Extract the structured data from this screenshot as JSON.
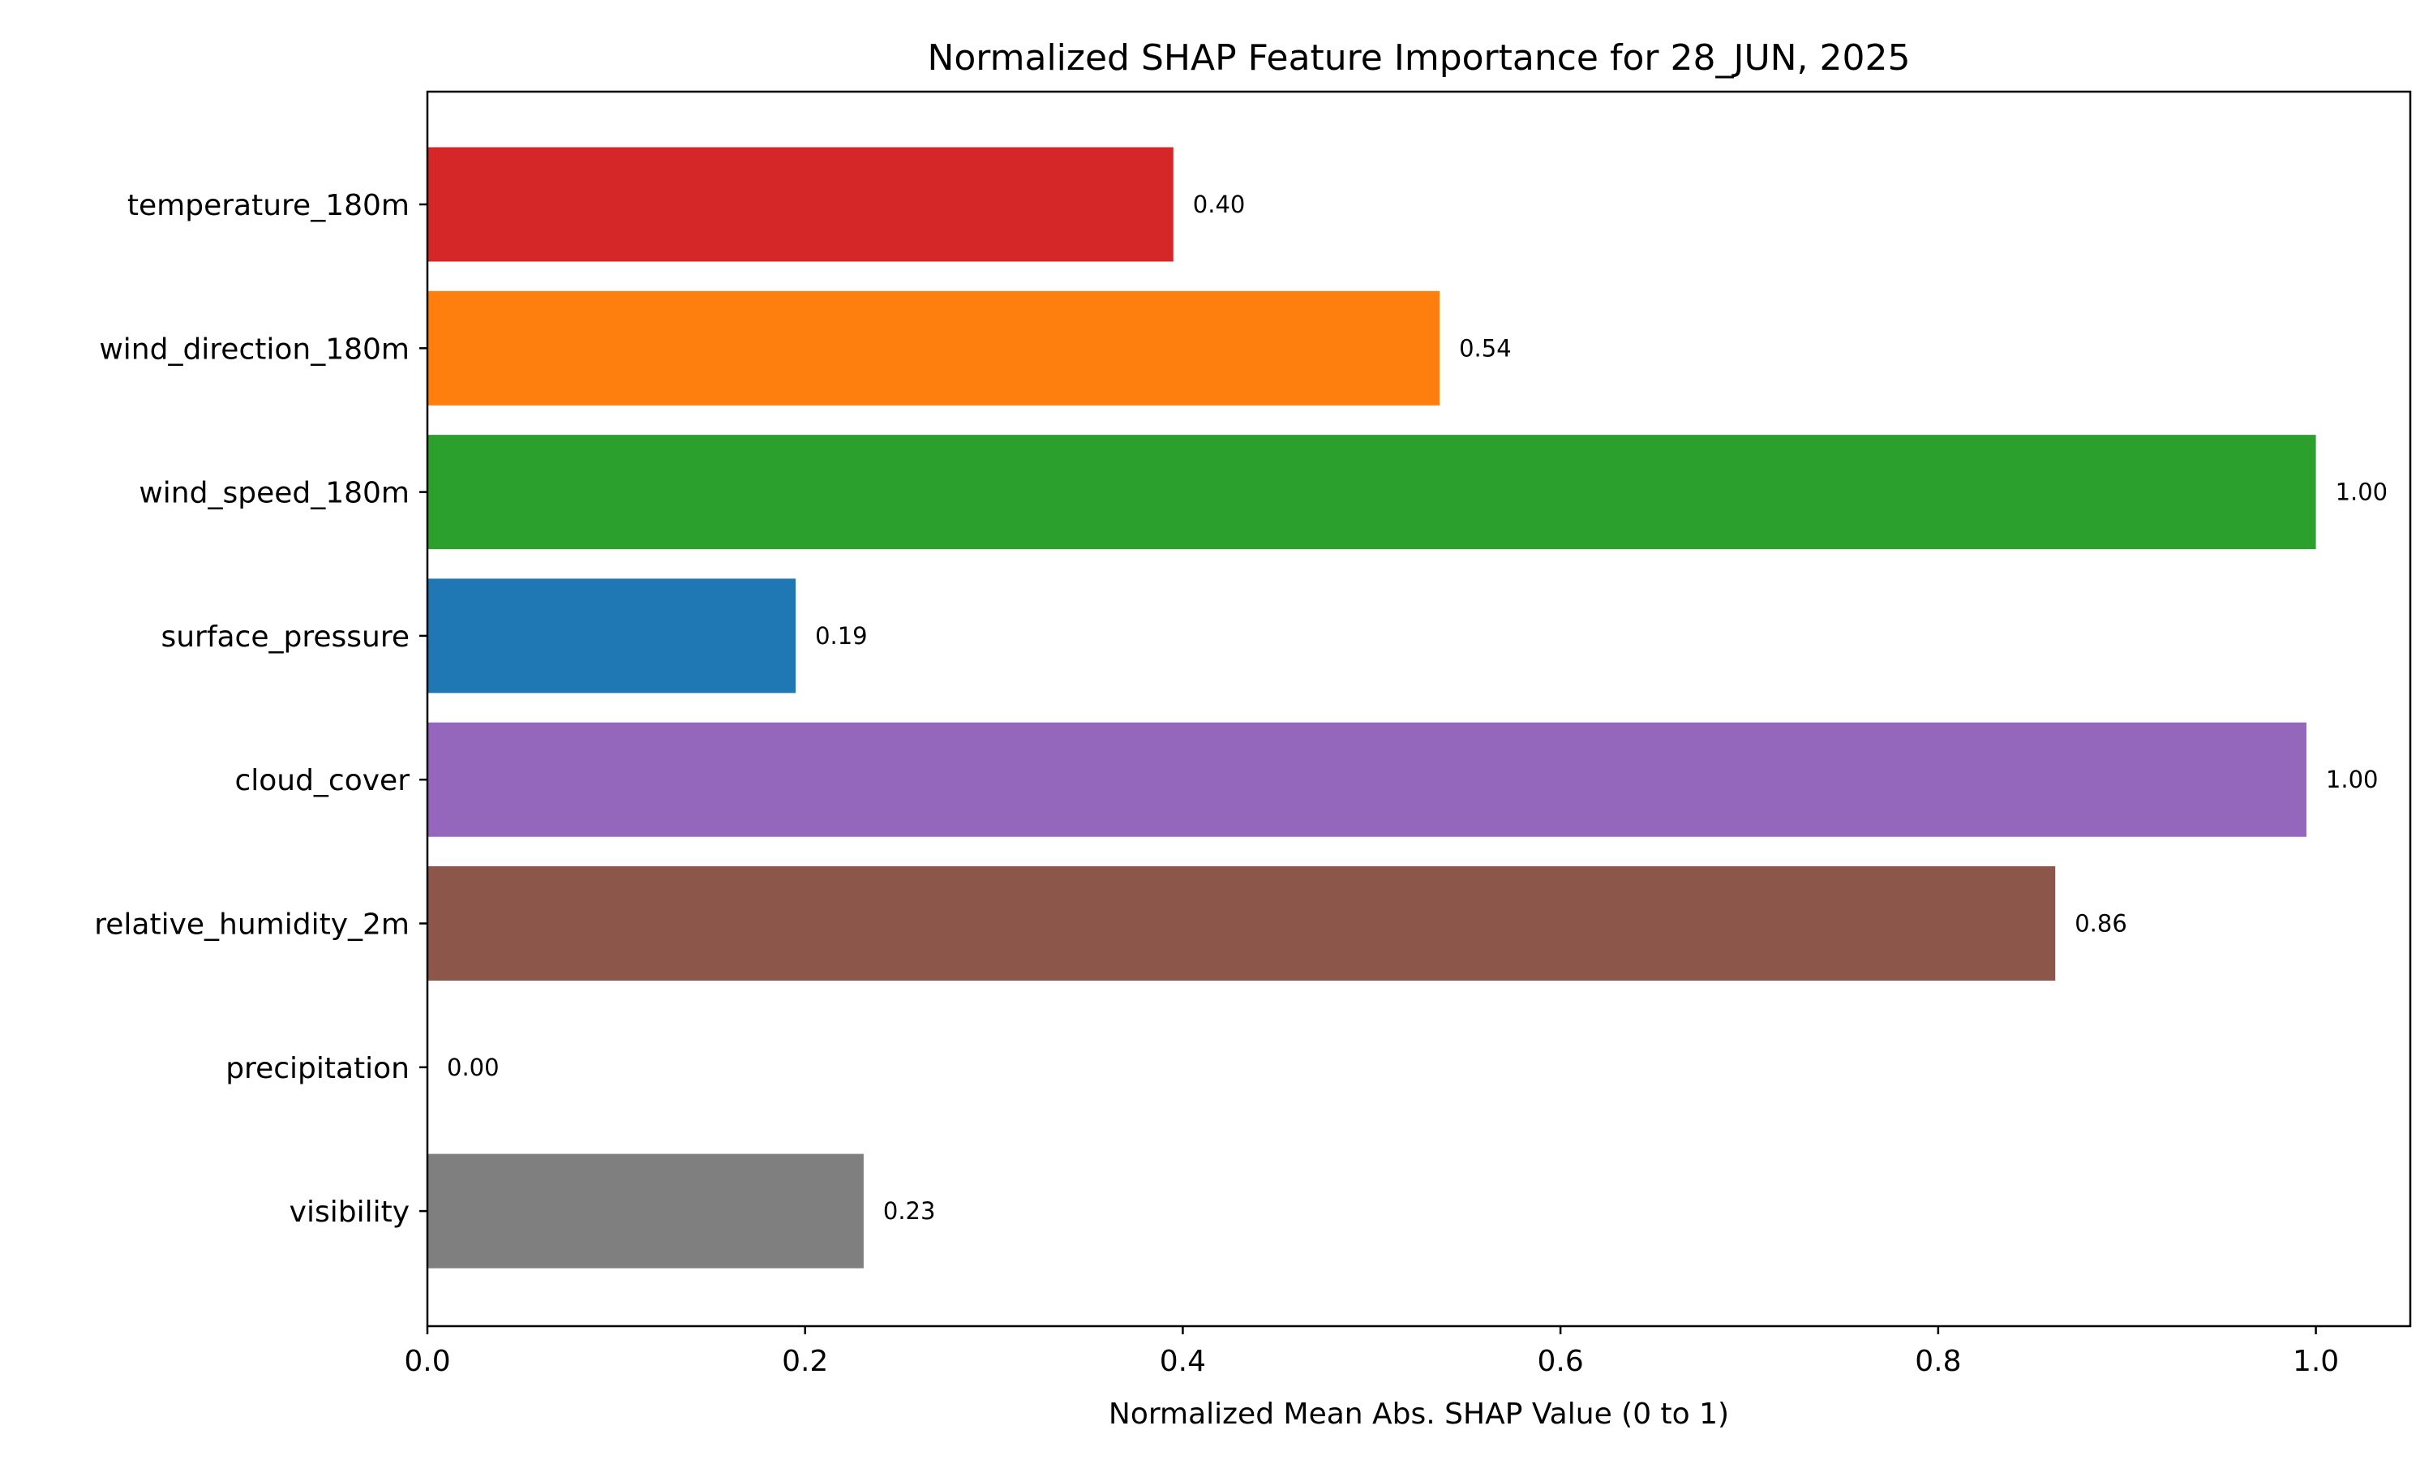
{
  "chart_data": {
    "type": "bar",
    "orientation": "horizontal",
    "title": "Normalized SHAP Feature Importance for 28_JUN, 2025",
    "xlabel": "Normalized Mean Abs. SHAP Value (0 to 1)",
    "ylabel": "",
    "xlim": [
      0,
      1.05
    ],
    "xticks": [
      "0.0",
      "0.2",
      "0.4",
      "0.6",
      "0.8",
      "1.0"
    ],
    "grid": false,
    "legend": "none",
    "categories": [
      "temperature_180m",
      "wind_direction_180m",
      "wind_speed_180m",
      "surface_pressure",
      "cloud_cover",
      "relative_humidity_2m",
      "precipitation",
      "visibility"
    ],
    "values": [
      0.395,
      0.536,
      1.0,
      0.195,
      0.995,
      0.862,
      0.0,
      0.231
    ],
    "value_labels": [
      "0.40",
      "0.54",
      "1.00",
      "0.19",
      "1.00",
      "0.86",
      "0.00",
      "0.23"
    ],
    "colors": [
      "#d62728",
      "#ff7f0e",
      "#2ca02c",
      "#1f77b4",
      "#9467bd",
      "#8c564b",
      "#e377c2",
      "#7f7f7f"
    ]
  }
}
